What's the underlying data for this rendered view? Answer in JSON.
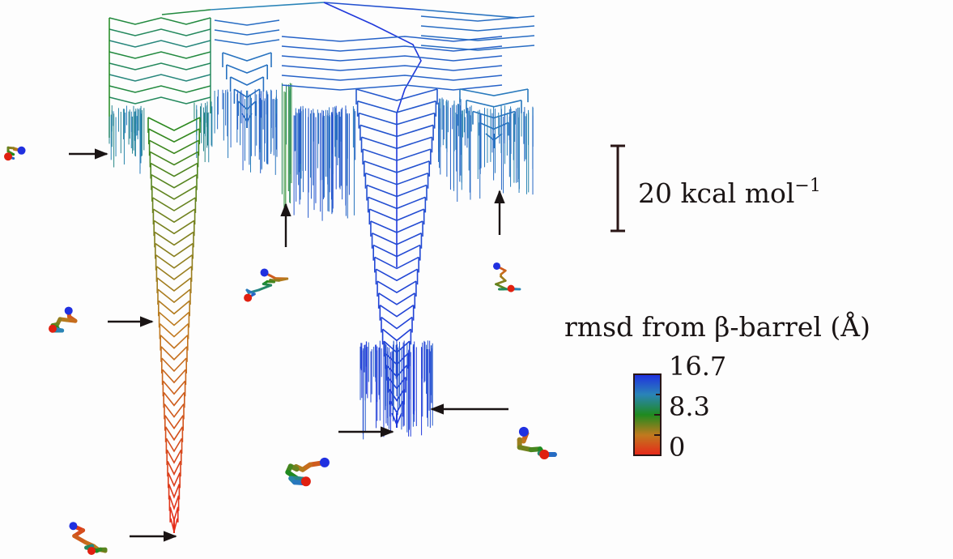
{
  "scale_bar": {
    "value": "20",
    "unit": "kcal mol",
    "exponent": "−1"
  },
  "colorbar": {
    "title": "rmsd from β-barrel (Å)",
    "ticks": [
      "16.7",
      "8.3",
      "0"
    ],
    "range": [
      0,
      16.7
    ],
    "colors": [
      "#e8261a",
      "#c07a1e",
      "#1f8a1f",
      "#2a84b8",
      "#1f2fe0"
    ]
  }
}
